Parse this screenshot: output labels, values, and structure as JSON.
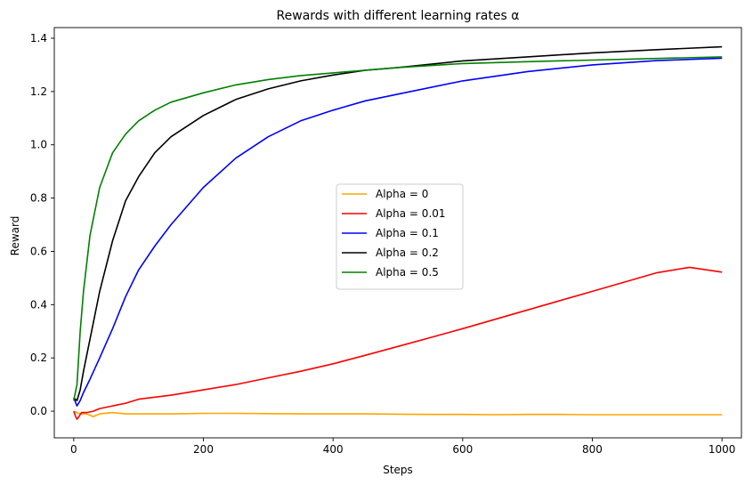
{
  "chart_data": {
    "type": "line",
    "title": "Rewards with different learning rates α",
    "xlabel": "Steps",
    "ylabel": "Reward",
    "xlim": [
      -30,
      1030
    ],
    "ylim": [
      -0.1,
      1.44
    ],
    "xticks": [
      0,
      200,
      400,
      600,
      800,
      1000
    ],
    "yticks": [
      0.0,
      0.2,
      0.4,
      0.6,
      0.8,
      1.0,
      1.2,
      1.4
    ],
    "xtick_labels": [
      "0",
      "200",
      "400",
      "600",
      "800",
      "1000"
    ],
    "ytick_labels": [
      "0.0",
      "0.2",
      "0.4",
      "0.6",
      "0.8",
      "1.0",
      "1.2",
      "1.4"
    ],
    "grid": false,
    "legend_position": "center",
    "series": [
      {
        "name": "Alpha = 0",
        "color": "#ffa500",
        "x": [
          0,
          5,
          10,
          20,
          30,
          40,
          60,
          80,
          100,
          150,
          200,
          250,
          300,
          350,
          400,
          450,
          500,
          550,
          600,
          650,
          700,
          750,
          800,
          850,
          900,
          950,
          1000
        ],
        "y": [
          0.0,
          -0.005,
          -0.01,
          -0.01,
          -0.02,
          -0.01,
          -0.005,
          -0.01,
          -0.01,
          -0.01,
          -0.008,
          -0.008,
          -0.009,
          -0.01,
          -0.01,
          -0.01,
          -0.011,
          -0.012,
          -0.012,
          -0.013,
          -0.012,
          -0.012,
          -0.013,
          -0.013,
          -0.013,
          -0.013,
          -0.013
        ]
      },
      {
        "name": "Alpha = 0.01",
        "color": "#ff0000",
        "x": [
          0,
          3,
          5,
          8,
          12,
          20,
          30,
          40,
          60,
          80,
          100,
          150,
          200,
          250,
          300,
          350,
          400,
          450,
          500,
          550,
          600,
          650,
          700,
          750,
          800,
          850,
          900,
          950,
          1000
        ],
        "y": [
          0.0,
          -0.02,
          -0.03,
          -0.02,
          -0.005,
          -0.005,
          0.0,
          0.01,
          0.02,
          0.03,
          0.045,
          0.06,
          0.08,
          0.1,
          0.125,
          0.15,
          0.178,
          0.21,
          0.243,
          0.276,
          0.31,
          0.345,
          0.38,
          0.415,
          0.45,
          0.485,
          0.52,
          0.54,
          0.522
        ]
      },
      {
        "name": "Alpha = 0.1",
        "color": "#0000ff",
        "x": [
          0,
          5,
          10,
          15,
          25,
          40,
          60,
          80,
          100,
          125,
          150,
          200,
          250,
          300,
          350,
          400,
          450,
          500,
          600,
          700,
          800,
          900,
          1000
        ],
        "y": [
          0.05,
          0.02,
          0.04,
          0.07,
          0.12,
          0.2,
          0.31,
          0.43,
          0.53,
          0.62,
          0.7,
          0.84,
          0.95,
          1.03,
          1.09,
          1.13,
          1.165,
          1.19,
          1.24,
          1.275,
          1.3,
          1.316,
          1.325
        ]
      },
      {
        "name": "Alpha = 0.2",
        "color": "#000000",
        "x": [
          0,
          5,
          10,
          15,
          25,
          40,
          60,
          80,
          100,
          125,
          150,
          200,
          250,
          300,
          350,
          400,
          450,
          500,
          600,
          700,
          800,
          900,
          1000
        ],
        "y": [
          0.05,
          0.04,
          0.08,
          0.15,
          0.27,
          0.45,
          0.64,
          0.79,
          0.88,
          0.97,
          1.03,
          1.11,
          1.17,
          1.21,
          1.24,
          1.262,
          1.28,
          1.29,
          1.315,
          1.33,
          1.345,
          1.357,
          1.368
        ]
      },
      {
        "name": "Alpha = 0.5",
        "color": "#008000",
        "x": [
          0,
          5,
          10,
          15,
          25,
          40,
          60,
          80,
          100,
          125,
          150,
          200,
          250,
          300,
          350,
          400,
          450,
          500,
          600,
          700,
          800,
          900,
          1000
        ],
        "y": [
          0.04,
          0.1,
          0.3,
          0.45,
          0.66,
          0.84,
          0.97,
          1.04,
          1.09,
          1.13,
          1.16,
          1.195,
          1.225,
          1.245,
          1.26,
          1.27,
          1.28,
          1.29,
          1.305,
          1.312,
          1.318,
          1.324,
          1.33
        ]
      }
    ]
  }
}
